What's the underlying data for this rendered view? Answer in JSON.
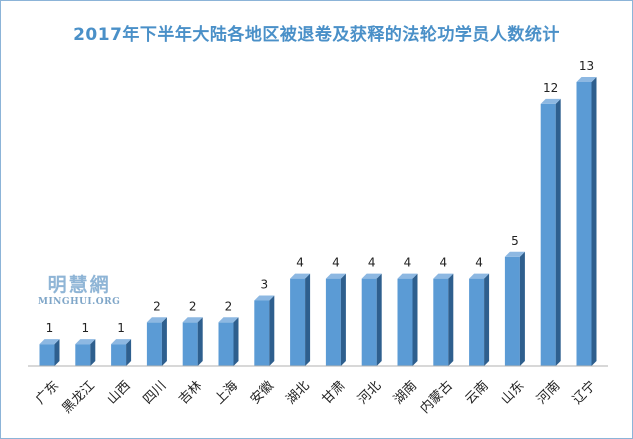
{
  "chart_data": {
    "type": "bar",
    "title": "2017年下半年大陆各地区被退卷及获释的法轮功学员人数统计",
    "categories": [
      "广东",
      "黑龙江",
      "山西",
      "四川",
      "吉林",
      "上海",
      "安徽",
      "湖北",
      "甘肃",
      "河北",
      "湖南",
      "内蒙古",
      "云南",
      "山东",
      "河南",
      "辽宁"
    ],
    "values": [
      1,
      1,
      1,
      2,
      2,
      2,
      3,
      4,
      4,
      4,
      4,
      4,
      4,
      5,
      12,
      13
    ],
    "xlabel": "",
    "ylabel": "",
    "ylim": [
      0,
      13
    ],
    "grid": false,
    "legend": "none",
    "bar_color": "#5b9bd5",
    "bar_side_color": "#2e5f8e",
    "bar_top_color": "#8db8e2"
  },
  "watermark": {
    "name": "明慧網",
    "site": "MINGHUI.ORG"
  },
  "colors": {
    "title": "#4a90c8",
    "frame": "#8cb4d8"
  }
}
